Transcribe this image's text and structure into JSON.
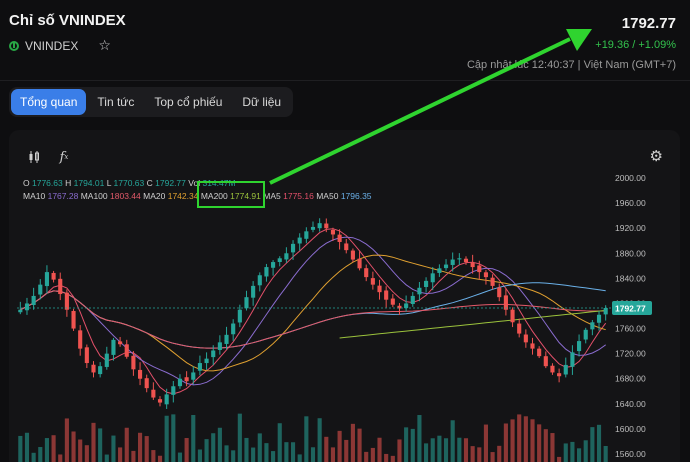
{
  "header": {
    "title": "Chỉ số VNINDEX",
    "ticker": "VNINDEX"
  },
  "price": {
    "last": "1792.77",
    "change": "+19.36 / +1.09%",
    "updated": "Cập nhật lúc 12:40:37 | Việt Nam (GMT+7)"
  },
  "tabs": [
    {
      "label": "Tổng quan",
      "active": true
    },
    {
      "label": "Tin tức",
      "active": false
    },
    {
      "label": "Top cổ phiếu",
      "active": false
    },
    {
      "label": "Dữ liệu",
      "active": false
    }
  ],
  "legend": {
    "ohlc": {
      "o_label": "O",
      "o": "1776.63",
      "h_label": "H",
      "h": "1794.01",
      "l_label": "L",
      "l": "1770.63",
      "c_label": "C",
      "c": "1792.77",
      "vol_label": "Vol",
      "vol": "314.47M"
    },
    "ma": [
      {
        "label": "MA10",
        "value": "1767.28",
        "color": "#8a6ccf"
      },
      {
        "label": "MA100",
        "value": "1803.44",
        "color": "#e35a6a"
      },
      {
        "label": "MA20",
        "value": "1742.34",
        "color": "#e0a030"
      },
      {
        "label": "MA200",
        "value": "1774.91",
        "color": "#9bc23c"
      },
      {
        "label": "MA5",
        "value": "1775.16",
        "color": "#e3506a"
      },
      {
        "label": "MA50",
        "value": "1796.35",
        "color": "#6ab0e8"
      }
    ]
  },
  "colors": {
    "up": "#26a69a",
    "down": "#ef5350",
    "accent": "#3a7ee8",
    "annotation": "#2fd42f"
  },
  "icons": {
    "candle": "candlestick-icon",
    "indicator": "function-icon",
    "settings": "gear-icon",
    "star": "star-icon"
  },
  "chart_data": {
    "type": "candlestick",
    "y_ticks": [
      "2000.00",
      "1960.00",
      "1920.00",
      "1880.00",
      "1840.00",
      "1800.00",
      "1760.00",
      "1720.00",
      "1680.00",
      "1640.00",
      "1600.00",
      "1560.00"
    ],
    "ylim": [
      1560,
      2000
    ],
    "last_price_label": "1792.77",
    "closes": [
      1790,
      1800,
      1812,
      1830,
      1850,
      1838,
      1815,
      1790,
      1760,
      1728,
      1705,
      1690,
      1700,
      1720,
      1742,
      1735,
      1715,
      1695,
      1680,
      1665,
      1650,
      1642,
      1655,
      1668,
      1680,
      1676,
      1690,
      1705,
      1712,
      1725,
      1738,
      1750,
      1768,
      1790,
      1810,
      1828,
      1845,
      1858,
      1866,
      1872,
      1880,
      1895,
      1905,
      1915,
      1922,
      1928,
      1920,
      1910,
      1898,
      1885,
      1870,
      1856,
      1842,
      1830,
      1818,
      1806,
      1798,
      1792,
      1800,
      1812,
      1825,
      1836,
      1848,
      1856,
      1862,
      1870,
      1872,
      1866,
      1858,
      1850,
      1842,
      1828,
      1810,
      1790,
      1770,
      1752,
      1738,
      1728,
      1716,
      1700,
      1690,
      1684,
      1702,
      1722,
      1740,
      1758,
      1770,
      1782,
      1792.77
    ]
  }
}
